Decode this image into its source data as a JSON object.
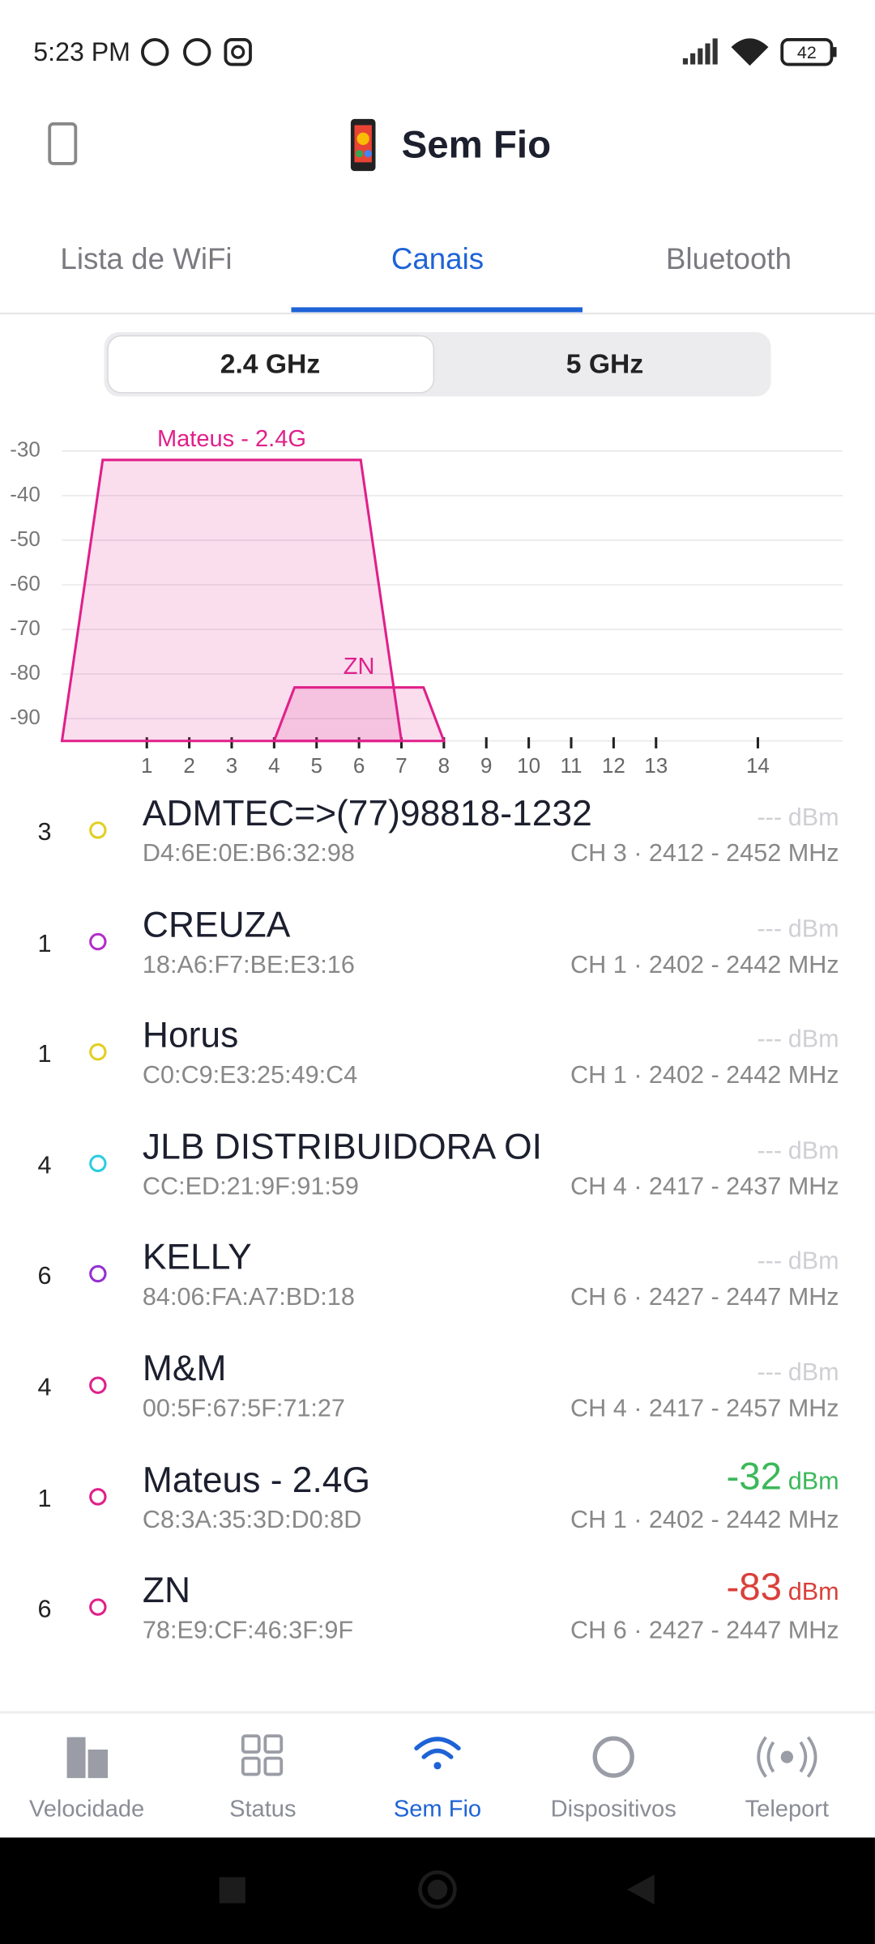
{
  "status_bar": {
    "time": "5:23 PM",
    "battery": "42"
  },
  "header": {
    "title": "Sem Fio"
  },
  "tabs": [
    {
      "label": "Lista de WiFi"
    },
    {
      "label": "Canais",
      "active": true
    },
    {
      "label": "Bluetooth"
    }
  ],
  "band_toggle": [
    {
      "label": "2.4 GHz",
      "active": true
    },
    {
      "label": "5 GHz"
    }
  ],
  "chart_data": {
    "type": "channel",
    "xlim": [
      2402,
      2494
    ],
    "xticks": [
      {
        "value": 2412,
        "label": "1"
      },
      {
        "value": 2417,
        "label": "2"
      },
      {
        "value": 2422,
        "label": "3"
      },
      {
        "value": 2427,
        "label": "4"
      },
      {
        "value": 2432,
        "label": "5"
      },
      {
        "value": 2437,
        "label": "6"
      },
      {
        "value": 2442,
        "label": "7"
      },
      {
        "value": 2447,
        "label": "8"
      },
      {
        "value": 2452,
        "label": "9"
      },
      {
        "value": 2457,
        "label": "10"
      },
      {
        "value": 2462,
        "label": "11"
      },
      {
        "value": 2467,
        "label": "12"
      },
      {
        "value": 2472,
        "label": "13"
      },
      {
        "value": 2484,
        "label": "14"
      }
    ],
    "ylim": [
      -95,
      -25
    ],
    "yticks": [
      -30,
      -40,
      -50,
      -60,
      -70,
      -80,
      -90
    ],
    "grid": true,
    "series": [
      {
        "name": "Mateus - 2.4G",
        "color": "#e0208a",
        "range": [
          2402,
          2442
        ],
        "value": -32
      },
      {
        "name": "ZN",
        "color": "#e0208a",
        "range": [
          2427,
          2447
        ],
        "value": -83
      }
    ]
  },
  "networks": [
    {
      "channel": "3",
      "color": "#e2cf22",
      "name": "ADMTEC=>(77)98818-1232",
      "mac": "D4:6E:0E:B6:32:98",
      "signal": "---",
      "unit": "dBm",
      "signal_color": "#cfcfd4",
      "band": "CH 3 · 2412 - 2452 MHz"
    },
    {
      "channel": "1",
      "color": "#b22ec8",
      "name": "CREUZA",
      "mac": "18:A6:F7:BE:E3:16",
      "signal": "---",
      "unit": "dBm",
      "signal_color": "#cfcfd4",
      "band": "CH 1 · 2402 - 2442 MHz"
    },
    {
      "channel": "1",
      "color": "#e2cf22",
      "name": "Horus",
      "mac": "C0:C9:E3:25:49:C4",
      "signal": "---",
      "unit": "dBm",
      "signal_color": "#cfcfd4",
      "band": "CH 1 · 2402 - 2442 MHz"
    },
    {
      "channel": "4",
      "color": "#2ccde2",
      "name": "JLB DISTRIBUIDORA OI",
      "mac": "CC:ED:21:9F:91:59",
      "signal": "---",
      "unit": "dBm",
      "signal_color": "#cfcfd4",
      "band": "CH 4 · 2417 - 2437 MHz"
    },
    {
      "channel": "6",
      "color": "#9430d0",
      "name": "KELLY",
      "mac": "84:06:FA:A7:BD:18",
      "signal": "---",
      "unit": "dBm",
      "signal_color": "#cfcfd4",
      "band": "CH 6 · 2427 - 2447 MHz"
    },
    {
      "channel": "4",
      "color": "#e0208a",
      "name": "M&M",
      "mac": "00:5F:67:5F:71:27",
      "signal": "---",
      "unit": "dBm",
      "signal_color": "#cfcfd4",
      "band": "CH 4 · 2417 - 2457 MHz"
    },
    {
      "channel": "1",
      "color": "#e0208a",
      "name": "Mateus - 2.4G",
      "mac": "C8:3A:35:3D:D0:8D",
      "signal": -32,
      "unit": "dBm",
      "signal_color": "#3cb85a",
      "band": "CH 1 · 2402 - 2442 MHz"
    },
    {
      "channel": "6",
      "color": "#e0208a",
      "name": "ZN",
      "mac": "78:E9:CF:46:3F:9F",
      "signal": -83,
      "unit": "dBm",
      "signal_color": "#d9403a",
      "band": "CH 6 · 2427 - 2447 MHz"
    }
  ],
  "bottom_nav": [
    {
      "label": "Velocidade"
    },
    {
      "label": "Status"
    },
    {
      "label": "Sem Fio",
      "active": true
    },
    {
      "label": "Dispositivos"
    },
    {
      "label": "Teleport"
    }
  ]
}
